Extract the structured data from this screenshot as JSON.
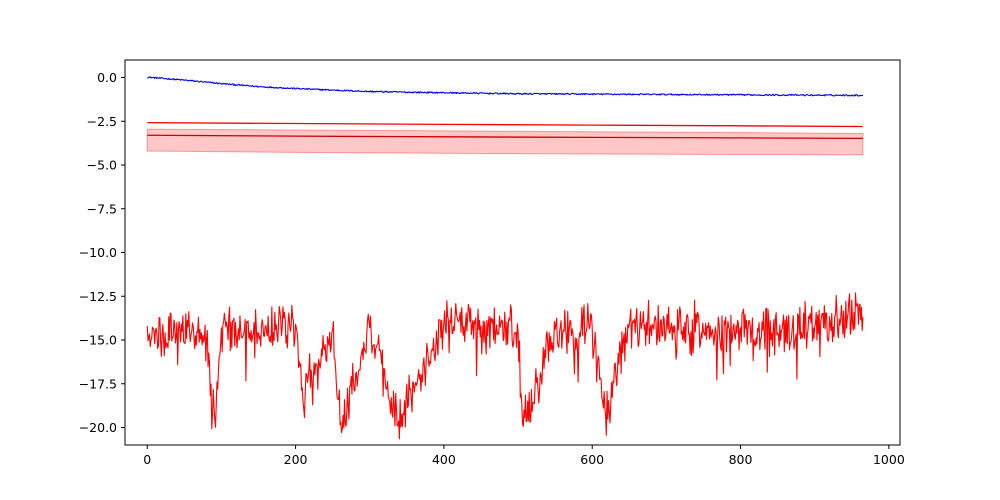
{
  "chart_data": {
    "type": "line",
    "title": "",
    "xlabel": "",
    "ylabel": "",
    "xlim": [
      -30,
      1015
    ],
    "ylim": [
      -21,
      1.0
    ],
    "x_ticks": [
      0,
      200,
      400,
      600,
      800,
      1000
    ],
    "x_tick_labels": [
      "0",
      "200",
      "400",
      "600",
      "800",
      "1000"
    ],
    "y_ticks": [
      0.0,
      -2.5,
      -5.0,
      -7.5,
      -10.0,
      -12.5,
      -15.0,
      -17.5,
      -20.0
    ],
    "y_tick_labels": [
      "0.0",
      "−2.5",
      "−5.0",
      "−7.5",
      "−10.0",
      "−12.5",
      "−15.0",
      "−17.5",
      "−20.0"
    ],
    "grid": false,
    "legend": "none",
    "x_range": [
      0,
      965
    ],
    "series": [
      {
        "role": "noisy-line",
        "color": "#0000ff",
        "points": [
          [
            0,
            0.02
          ],
          [
            50,
            -0.15
          ],
          [
            100,
            -0.35
          ],
          [
            150,
            -0.52
          ],
          [
            200,
            -0.63
          ],
          [
            250,
            -0.72
          ],
          [
            300,
            -0.8
          ],
          [
            350,
            -0.84
          ],
          [
            400,
            -0.87
          ],
          [
            450,
            -0.9
          ],
          [
            500,
            -0.93
          ],
          [
            550,
            -0.94
          ],
          [
            600,
            -0.95
          ],
          [
            650,
            -0.96
          ],
          [
            700,
            -0.97
          ],
          [
            750,
            -0.98
          ],
          [
            800,
            -0.99
          ],
          [
            850,
            -1.0
          ],
          [
            900,
            -1.01
          ],
          [
            965,
            -1.02
          ]
        ]
      },
      {
        "role": "line",
        "color": "#ff0000",
        "points": [
          [
            0,
            -2.58
          ],
          [
            200,
            -2.63
          ],
          [
            400,
            -2.68
          ],
          [
            600,
            -2.72
          ],
          [
            800,
            -2.76
          ],
          [
            965,
            -2.8
          ]
        ]
      },
      {
        "role": "line",
        "color": "#cc0000",
        "points": [
          [
            0,
            -3.3
          ],
          [
            200,
            -3.35
          ],
          [
            400,
            -3.39
          ],
          [
            600,
            -3.42
          ],
          [
            800,
            -3.45
          ],
          [
            965,
            -3.48
          ]
        ]
      },
      {
        "role": "noisy-line",
        "color": "#ff0000",
        "points": [
          [
            0,
            -14.2
          ],
          [
            20,
            -14.8
          ],
          [
            40,
            -14.0
          ],
          [
            60,
            -14.5
          ],
          [
            80,
            -14.9
          ],
          [
            91,
            -19.5
          ],
          [
            100,
            -14.3
          ],
          [
            150,
            -14.6
          ],
          [
            200,
            -14.1
          ],
          [
            210,
            -18.5
          ],
          [
            250,
            -14.4
          ],
          [
            261,
            -19.7
          ],
          [
            300,
            -14.3
          ],
          [
            338,
            -19.9
          ],
          [
            400,
            -14.0
          ],
          [
            450,
            -14.2
          ],
          [
            500,
            -14.5
          ],
          [
            506,
            -19.8
          ],
          [
            550,
            -14.4
          ],
          [
            600,
            -14.3
          ],
          [
            618,
            -19.3
          ],
          [
            650,
            -14.1
          ],
          [
            700,
            -14.2
          ],
          [
            750,
            -14.5
          ],
          [
            800,
            -14.3
          ],
          [
            850,
            -14.6
          ],
          [
            900,
            -14.2
          ],
          [
            965,
            -13.7
          ]
        ]
      }
    ],
    "band": {
      "color": "#ff0000",
      "opacity": 0.22,
      "upper": [
        [
          0,
          -2.95
        ],
        [
          200,
          -3.0
        ],
        [
          400,
          -3.05
        ],
        [
          600,
          -3.1
        ],
        [
          800,
          -3.15
        ],
        [
          965,
          -3.2
        ]
      ],
      "lower": [
        [
          0,
          -4.2
        ],
        [
          200,
          -4.28
        ],
        [
          400,
          -4.33
        ],
        [
          600,
          -4.37
        ],
        [
          800,
          -4.4
        ],
        [
          965,
          -4.42
        ]
      ]
    }
  }
}
